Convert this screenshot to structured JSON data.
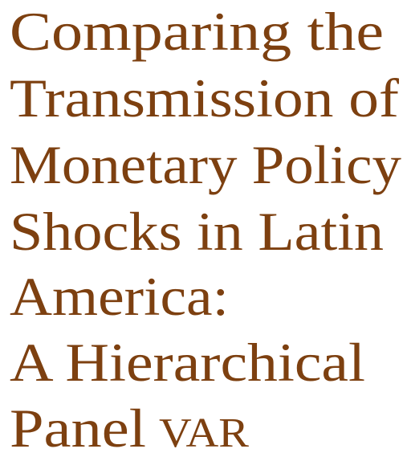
{
  "title": {
    "lines": [
      "Comparing the",
      "Transmission of",
      "Monetary Policy",
      "Shocks in Latin",
      "America:",
      "A Hierarchical"
    ],
    "last_line": [
      "Panel",
      "VAR"
    ]
  }
}
